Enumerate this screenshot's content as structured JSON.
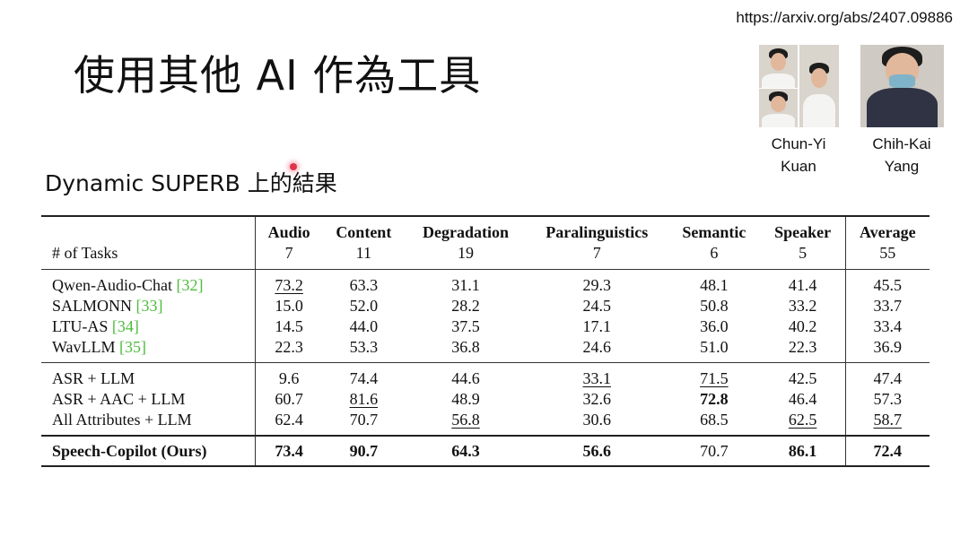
{
  "url": "https://arxiv.org/abs/2407.09886",
  "slide_title": "使用其他 AI 作為工具",
  "subtitle": "Dynamic SUPERB 上的結果",
  "authors": [
    {
      "name_line1": "Chun-Yi",
      "name_line2": "Kuan"
    },
    {
      "name_line1": "Chih-Kai",
      "name_line2": "Yang"
    }
  ],
  "table": {
    "header_label": "# of Tasks",
    "columns": [
      {
        "name": "Audio",
        "tasks": "7"
      },
      {
        "name": "Content",
        "tasks": "11"
      },
      {
        "name": "Degradation",
        "tasks": "19"
      },
      {
        "name": "Paralinguistics",
        "tasks": "7"
      },
      {
        "name": "Semantic",
        "tasks": "6"
      },
      {
        "name": "Speaker",
        "tasks": "5"
      },
      {
        "name": "Average",
        "tasks": "55"
      }
    ],
    "groups": [
      [
        {
          "model": "Qwen-Audio-Chat",
          "ref": "[32]",
          "values": [
            "73.2",
            "63.3",
            "31.1",
            "29.3",
            "48.1",
            "41.4",
            "45.5"
          ]
        },
        {
          "model": "SALMONN",
          "ref": "[33]",
          "values": [
            "15.0",
            "52.0",
            "28.2",
            "24.5",
            "50.8",
            "33.2",
            "33.7"
          ]
        },
        {
          "model": "LTU-AS",
          "ref": "[34]",
          "values": [
            "14.5",
            "44.0",
            "37.5",
            "17.1",
            "36.0",
            "40.2",
            "33.4"
          ]
        },
        {
          "model": "WavLLM",
          "ref": "[35]",
          "values": [
            "22.3",
            "53.3",
            "36.8",
            "24.6",
            "51.0",
            "22.3",
            "36.9"
          ]
        }
      ],
      [
        {
          "model": "ASR + LLM",
          "ref": "",
          "values": [
            "9.6",
            "74.4",
            "44.6",
            "33.1",
            "71.5",
            "42.5",
            "47.4"
          ]
        },
        {
          "model": "ASR + AAC + LLM",
          "ref": "",
          "values": [
            "60.7",
            "81.6",
            "48.9",
            "32.6",
            "72.8",
            "46.4",
            "57.3"
          ]
        },
        {
          "model": "All Attributes + LLM",
          "ref": "",
          "values": [
            "62.4",
            "70.7",
            "56.8",
            "30.6",
            "68.5",
            "62.5",
            "58.7"
          ]
        }
      ],
      [
        {
          "model": "Speech-Copilot (Ours)",
          "ref": "",
          "values": [
            "73.4",
            "90.7",
            "64.3",
            "56.6",
            "70.7",
            "86.1",
            "72.4"
          ]
        }
      ]
    ]
  }
}
